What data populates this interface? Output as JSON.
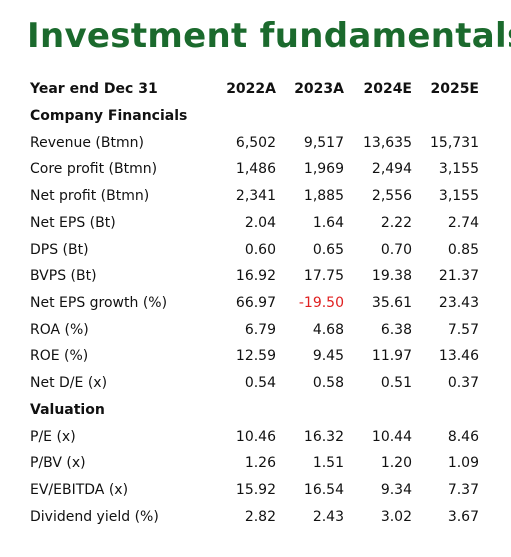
{
  "title": "Investment fundamentals",
  "header": {
    "label": "Year end Dec 31",
    "columns": [
      "2022A",
      "2023A",
      "2024E",
      "2025E"
    ]
  },
  "sections": [
    {
      "title": "Company Financials",
      "rows": [
        {
          "label": "Revenue (Btmn)",
          "values": [
            "6,502",
            "9,517",
            "13,635",
            "15,731"
          ]
        },
        {
          "label": "Core profit (Btmn)",
          "values": [
            "1,486",
            "1,969",
            "2,494",
            "3,155"
          ]
        },
        {
          "label": "Net profit (Btmn)",
          "values": [
            "2,341",
            "1,885",
            "2,556",
            "3,155"
          ]
        },
        {
          "label": "Net EPS (Bt)",
          "values": [
            "2.04",
            "1.64",
            "2.22",
            "2.74"
          ]
        },
        {
          "label": "DPS (Bt)",
          "values": [
            "0.60",
            "0.65",
            "0.70",
            "0.85"
          ]
        },
        {
          "label": "BVPS (Bt)",
          "values": [
            "16.92",
            "17.75",
            "19.38",
            "21.37"
          ]
        },
        {
          "label": "Net EPS growth (%)",
          "values": [
            "66.97",
            "-19.50",
            "35.61",
            "23.43"
          ]
        },
        {
          "label": "ROA (%)",
          "values": [
            "6.79",
            "4.68",
            "6.38",
            "7.57"
          ]
        },
        {
          "label": "ROE (%)",
          "values": [
            "12.59",
            "9.45",
            "11.97",
            "13.46"
          ]
        },
        {
          "label": "Net D/E (x)",
          "values": [
            "0.54",
            "0.58",
            "0.51",
            "0.37"
          ]
        }
      ]
    },
    {
      "title": "Valuation",
      "rows": [
        {
          "label": "P/E (x)",
          "values": [
            "10.46",
            "16.32",
            "10.44",
            "8.46"
          ]
        },
        {
          "label": "P/BV (x)",
          "values": [
            "1.26",
            "1.51",
            "1.20",
            "1.09"
          ]
        },
        {
          "label": "EV/EBITDA (x)",
          "values": [
            "15.92",
            "16.54",
            "9.34",
            "7.37"
          ]
        },
        {
          "label": "Dividend yield (%)",
          "values": [
            "2.82",
            "2.43",
            "3.02",
            "3.67"
          ]
        }
      ]
    }
  ]
}
